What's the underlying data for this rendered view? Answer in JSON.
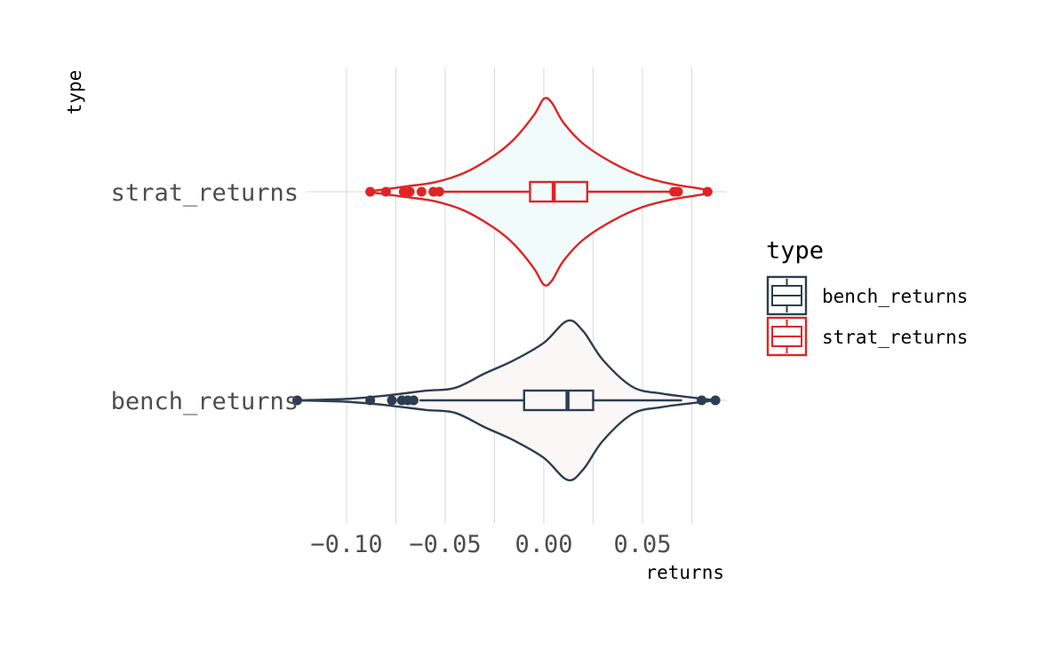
{
  "chart_data": {
    "type": "violin",
    "xlabel": "returns",
    "ylabel": "type",
    "x_ticks": [
      -0.1,
      -0.05,
      0.0,
      0.05
    ],
    "x_tick_labels": [
      "−0.10",
      "−0.05",
      "0.00",
      "0.05"
    ],
    "xlim": [
      -0.125,
      0.098
    ],
    "grid": "vertical major and minor",
    "legend_title": "type",
    "legend_position": "right",
    "series": [
      {
        "name": "strat_returns",
        "color": "#e02424",
        "fill": "#f2fbfb",
        "box": {
          "q1": -0.007,
          "median": 0.005,
          "q3": 0.022,
          "whisker_low": -0.052,
          "whisker_high": 0.065
        },
        "outliers": [
          -0.088,
          -0.08,
          -0.071,
          -0.068,
          -0.062,
          -0.056,
          -0.053,
          0.066,
          0.068,
          0.083
        ],
        "density": [
          [
            -0.09,
            0.0
          ],
          [
            -0.07,
            0.055
          ],
          [
            -0.055,
            0.1
          ],
          [
            -0.04,
            0.2
          ],
          [
            -0.025,
            0.38
          ],
          [
            -0.015,
            0.55
          ],
          [
            -0.005,
            0.8
          ],
          [
            0.0,
            0.97
          ],
          [
            0.004,
            0.93
          ],
          [
            0.01,
            0.72
          ],
          [
            0.02,
            0.5
          ],
          [
            0.035,
            0.3
          ],
          [
            0.05,
            0.16
          ],
          [
            0.065,
            0.08
          ],
          [
            0.08,
            0.03
          ],
          [
            0.085,
            0.0
          ]
        ]
      },
      {
        "name": "bench_returns",
        "color": "#2c3e50",
        "fill": "#fbf7f7",
        "box": {
          "q1": -0.01,
          "median": 0.012,
          "q3": 0.025,
          "whisker_low": -0.063,
          "whisker_high": 0.07
        },
        "outliers": [
          -0.125,
          -0.088,
          -0.077,
          -0.072,
          -0.069,
          -0.066,
          0.08,
          0.087
        ],
        "density": [
          [
            -0.125,
            0.0
          ],
          [
            -0.1,
            0.015
          ],
          [
            -0.08,
            0.05
          ],
          [
            -0.06,
            0.1
          ],
          [
            -0.045,
            0.13
          ],
          [
            -0.03,
            0.28
          ],
          [
            -0.015,
            0.42
          ],
          [
            0.0,
            0.6
          ],
          [
            0.012,
            0.83
          ],
          [
            0.02,
            0.72
          ],
          [
            0.03,
            0.42
          ],
          [
            0.045,
            0.14
          ],
          [
            0.06,
            0.07
          ],
          [
            0.075,
            0.03
          ],
          [
            0.087,
            0.0
          ]
        ]
      }
    ]
  }
}
